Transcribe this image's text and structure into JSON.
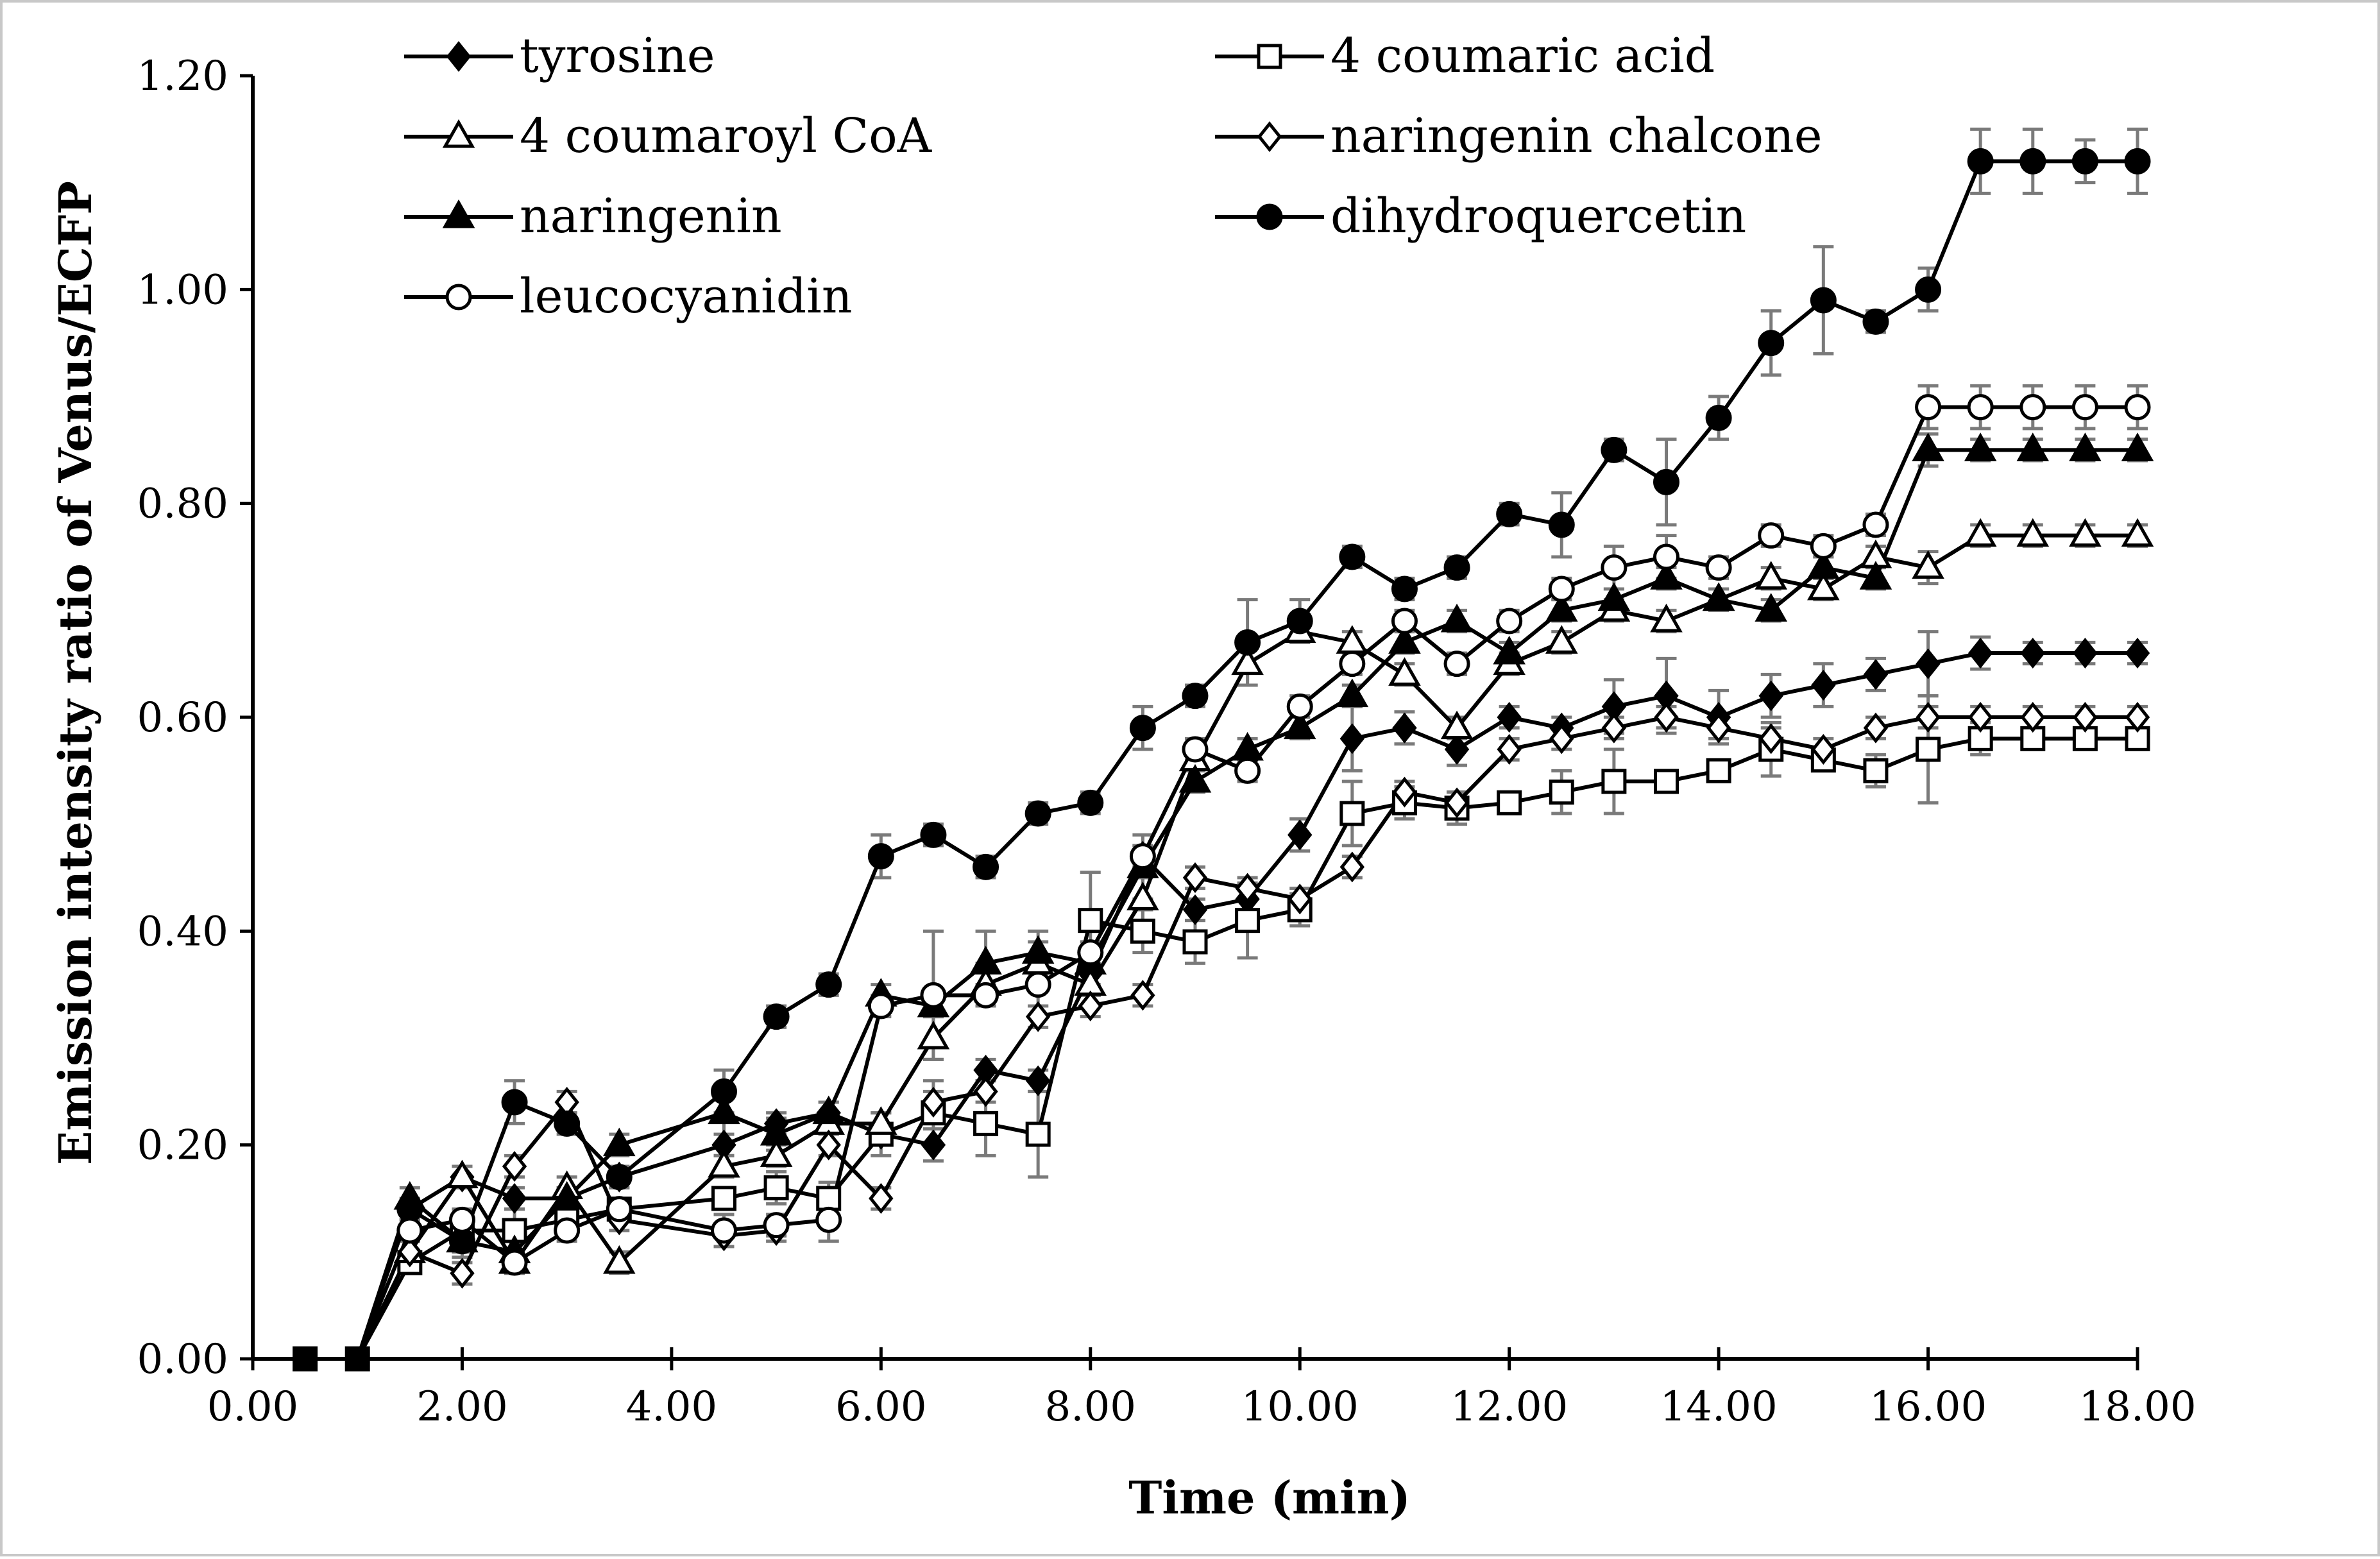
{
  "chart_data": {
    "type": "line",
    "title": "",
    "xlabel": "Time (min)",
    "ylabel": "Emission intensity ratio of Venus/ECFP",
    "xlim": [
      0,
      18
    ],
    "ylim": [
      0,
      1.2
    ],
    "xticks": [
      "0.00",
      "2.00",
      "4.00",
      "6.00",
      "8.00",
      "10.00",
      "12.00",
      "14.00",
      "16.00",
      "18.00"
    ],
    "yticks": [
      "0.00",
      "0.20",
      "0.40",
      "0.60",
      "0.80",
      "1.00",
      "1.20"
    ],
    "grid": false,
    "legend_position": "top",
    "series": [
      {
        "name": "tyrosine",
        "marker": "diamond",
        "fill": "filled",
        "points": [
          [
            0.5,
            0
          ],
          [
            1,
            0
          ],
          [
            1.5,
            0.14
          ],
          [
            2,
            0.17
          ],
          [
            2.5,
            0.15
          ],
          [
            3,
            0.15
          ],
          [
            3.5,
            0.17
          ],
          [
            4.5,
            0.2
          ],
          [
            5,
            0.22
          ],
          [
            5.5,
            0.23
          ],
          [
            6,
            0.21
          ],
          [
            6.5,
            0.2
          ],
          [
            7,
            0.27
          ],
          [
            7.5,
            0.26
          ],
          [
            8,
            0.36
          ],
          [
            8.5,
            0.47
          ],
          [
            9,
            0.42
          ],
          [
            9.5,
            0.43
          ],
          [
            10,
            0.49
          ],
          [
            10.5,
            0.58
          ],
          [
            11,
            0.59
          ],
          [
            11.5,
            0.57
          ],
          [
            12,
            0.6
          ],
          [
            12.5,
            0.59
          ],
          [
            13,
            0.61
          ],
          [
            13.5,
            0.62
          ],
          [
            14,
            0.6
          ],
          [
            14.5,
            0.62
          ],
          [
            15,
            0.63
          ],
          [
            15.5,
            0.64
          ],
          [
            16,
            0.65
          ],
          [
            16.5,
            0.66
          ],
          [
            17,
            0.66
          ],
          [
            17.5,
            0.66
          ],
          [
            18,
            0.66
          ]
        ],
        "errors": [
          0,
          0,
          0.01,
          0.01,
          0.01,
          0.01,
          0.01,
          0.01,
          0.01,
          0.01,
          0.01,
          0.015,
          0.01,
          0.01,
          0.01,
          0.01,
          0.01,
          0.01,
          0.015,
          0.03,
          0.015,
          0.015,
          0.01,
          0.01,
          0.025,
          0.035,
          0.025,
          0.02,
          0.02,
          0.015,
          0.03,
          0.015,
          0.01,
          0.01,
          0.01
        ]
      },
      {
        "name": "4 coumaric acid",
        "marker": "square",
        "fill": "open",
        "points": [
          [
            0.5,
            0
          ],
          [
            1,
            0
          ],
          [
            1.5,
            0.09
          ],
          [
            2,
            0.12
          ],
          [
            2.5,
            0.12
          ],
          [
            3,
            0.13
          ],
          [
            3.5,
            0.14
          ],
          [
            4.5,
            0.15
          ],
          [
            5,
            0.16
          ],
          [
            5.5,
            0.15
          ],
          [
            6,
            0.21
          ],
          [
            6.5,
            0.23
          ],
          [
            7,
            0.22
          ],
          [
            7.5,
            0.21
          ],
          [
            8,
            0.41
          ],
          [
            8.5,
            0.4
          ],
          [
            9,
            0.39
          ],
          [
            9.5,
            0.41
          ],
          [
            10,
            0.42
          ],
          [
            10.5,
            0.51
          ],
          [
            11,
            0.52
          ],
          [
            11.5,
            0.515
          ],
          [
            12,
            0.52
          ],
          [
            12.5,
            0.53
          ],
          [
            13,
            0.54
          ],
          [
            13.5,
            0.54
          ],
          [
            14,
            0.55
          ],
          [
            14.5,
            0.57
          ],
          [
            15,
            0.56
          ],
          [
            15.5,
            0.55
          ],
          [
            16,
            0.57
          ],
          [
            16.5,
            0.58
          ],
          [
            17,
            0.58
          ],
          [
            17.5,
            0.58
          ],
          [
            18,
            0.58
          ]
        ],
        "errors": [
          0,
          0,
          0.01,
          0.01,
          0.02,
          0.01,
          0.01,
          0.01,
          0.015,
          0.015,
          0.02,
          0.03,
          0.03,
          0.04,
          0.045,
          0.02,
          0.02,
          0.035,
          0.015,
          0.03,
          0.015,
          0.015,
          0.01,
          0.02,
          0.03,
          0.01,
          0.01,
          0.025,
          0.01,
          0.015,
          0.05,
          0.015,
          0.01,
          0.01,
          0.01
        ]
      },
      {
        "name": "4 coumaroyl CoA",
        "marker": "triangle",
        "fill": "open",
        "points": [
          [
            0.5,
            0
          ],
          [
            1,
            0
          ],
          [
            1.5,
            0.1
          ],
          [
            2,
            0.17
          ],
          [
            2.5,
            0.09
          ],
          [
            3,
            0.16
          ],
          [
            3.5,
            0.09
          ],
          [
            4.5,
            0.18
          ],
          [
            5,
            0.19
          ],
          [
            5.5,
            0.22
          ],
          [
            6,
            0.22
          ],
          [
            6.5,
            0.3
          ],
          [
            7,
            0.35
          ],
          [
            7.5,
            0.37
          ],
          [
            8,
            0.35
          ],
          [
            8.5,
            0.43
          ],
          [
            9,
            0.56
          ],
          [
            9.5,
            0.65
          ],
          [
            10,
            0.68
          ],
          [
            10.5,
            0.67
          ],
          [
            11,
            0.64
          ],
          [
            11.5,
            0.59
          ],
          [
            12,
            0.65
          ],
          [
            12.5,
            0.67
          ],
          [
            13,
            0.7
          ],
          [
            13.5,
            0.69
          ],
          [
            14,
            0.71
          ],
          [
            14.5,
            0.73
          ],
          [
            15,
            0.72
          ],
          [
            15.5,
            0.75
          ],
          [
            16,
            0.74
          ],
          [
            16.5,
            0.77
          ],
          [
            17,
            0.77
          ],
          [
            17.5,
            0.77
          ],
          [
            18,
            0.77
          ]
        ],
        "errors": [
          0,
          0,
          0.01,
          0.01,
          0.01,
          0.01,
          0.01,
          0.01,
          0.01,
          0.01,
          0.01,
          0.02,
          0.02,
          0.02,
          0.01,
          0.02,
          0.01,
          0.02,
          0.01,
          0.01,
          0.01,
          0.01,
          0.01,
          0.01,
          0.01,
          0.01,
          0.01,
          0.01,
          0.01,
          0.01,
          0.015,
          0.01,
          0.01,
          0.01,
          0.01
        ]
      },
      {
        "name": "naringenin chalcone",
        "marker": "diamond",
        "fill": "open",
        "points": [
          [
            0.5,
            0
          ],
          [
            1,
            0
          ],
          [
            1.5,
            0.1
          ],
          [
            2,
            0.08
          ],
          [
            2.5,
            0.18
          ],
          [
            3,
            0.24
          ],
          [
            3.5,
            0.13
          ],
          [
            4.5,
            0.115
          ],
          [
            5,
            0.12
          ],
          [
            5.5,
            0.2
          ],
          [
            6,
            0.15
          ],
          [
            6.5,
            0.24
          ],
          [
            7,
            0.25
          ],
          [
            7.5,
            0.32
          ],
          [
            8,
            0.33
          ],
          [
            8.5,
            0.34
          ],
          [
            9,
            0.45
          ],
          [
            9.5,
            0.44
          ],
          [
            10,
            0.43
          ],
          [
            10.5,
            0.46
          ],
          [
            11,
            0.53
          ],
          [
            11.5,
            0.52
          ],
          [
            12,
            0.57
          ],
          [
            12.5,
            0.58
          ],
          [
            13,
            0.59
          ],
          [
            13.5,
            0.6
          ],
          [
            14,
            0.59
          ],
          [
            14.5,
            0.58
          ],
          [
            15,
            0.57
          ],
          [
            15.5,
            0.59
          ],
          [
            16,
            0.6
          ],
          [
            16.5,
            0.6
          ],
          [
            17,
            0.6
          ],
          [
            17.5,
            0.6
          ],
          [
            18,
            0.6
          ]
        ],
        "errors": [
          0,
          0,
          0.01,
          0.01,
          0.01,
          0.01,
          0.01,
          0.01,
          0.01,
          0.01,
          0.01,
          0.01,
          0.01,
          0.01,
          0.01,
          0.01,
          0.01,
          0.01,
          0.01,
          0.01,
          0.01,
          0.01,
          0.01,
          0.01,
          0.01,
          0.01,
          0.01,
          0.01,
          0.01,
          0.01,
          0.01,
          0.01,
          0.01,
          0.01,
          0.01
        ]
      },
      {
        "name": "naringenin",
        "marker": "triangle",
        "fill": "filled",
        "points": [
          [
            0.5,
            0
          ],
          [
            1,
            0
          ],
          [
            1.5,
            0.15
          ],
          [
            2,
            0.11
          ],
          [
            2.5,
            0.1
          ],
          [
            3,
            0.15
          ],
          [
            3.5,
            0.2
          ],
          [
            4.5,
            0.23
          ],
          [
            5,
            0.21
          ],
          [
            5.5,
            0.23
          ],
          [
            6,
            0.34
          ],
          [
            6.5,
            0.33
          ],
          [
            7,
            0.37
          ],
          [
            7.5,
            0.38
          ],
          [
            8,
            0.37
          ],
          [
            8.5,
            0.46
          ],
          [
            9,
            0.54
          ],
          [
            9.5,
            0.57
          ],
          [
            10,
            0.59
          ],
          [
            10.5,
            0.62
          ],
          [
            11,
            0.67
          ],
          [
            11.5,
            0.69
          ],
          [
            12,
            0.66
          ],
          [
            12.5,
            0.7
          ],
          [
            13,
            0.71
          ],
          [
            13.5,
            0.73
          ],
          [
            14,
            0.71
          ],
          [
            14.5,
            0.7
          ],
          [
            15,
            0.74
          ],
          [
            15.5,
            0.73
          ],
          [
            16,
            0.85
          ],
          [
            16.5,
            0.85
          ],
          [
            17,
            0.85
          ],
          [
            17.5,
            0.85
          ],
          [
            18,
            0.85
          ]
        ],
        "errors": [
          0,
          0,
          0.01,
          0.01,
          0.01,
          0.01,
          0.01,
          0.04,
          0.015,
          0.01,
          0.01,
          0.01,
          0.03,
          0.02,
          0.01,
          0.03,
          0.01,
          0.01,
          0.01,
          0.01,
          0.01,
          0.01,
          0.01,
          0.01,
          0.01,
          0.01,
          0.01,
          0.01,
          0.01,
          0.01,
          0.015,
          0.01,
          0.01,
          0.01,
          0.01
        ]
      },
      {
        "name": "dihydroquercetin",
        "marker": "circle",
        "fill": "filled",
        "points": [
          [
            0.5,
            0
          ],
          [
            1,
            0
          ],
          [
            1.5,
            0.14
          ],
          [
            2,
            0.11
          ],
          [
            2.5,
            0.24
          ],
          [
            3,
            0.22
          ],
          [
            3.5,
            0.17
          ],
          [
            4.5,
            0.25
          ],
          [
            5,
            0.32
          ],
          [
            5.5,
            0.35
          ],
          [
            6,
            0.47
          ],
          [
            6.5,
            0.49
          ],
          [
            7,
            0.46
          ],
          [
            7.5,
            0.51
          ],
          [
            8,
            0.52
          ],
          [
            8.5,
            0.59
          ],
          [
            9,
            0.62
          ],
          [
            9.5,
            0.67
          ],
          [
            10,
            0.69
          ],
          [
            10.5,
            0.75
          ],
          [
            11,
            0.72
          ],
          [
            11.5,
            0.74
          ],
          [
            12,
            0.79
          ],
          [
            12.5,
            0.78
          ],
          [
            13,
            0.85
          ],
          [
            13.5,
            0.82
          ],
          [
            14,
            0.88
          ],
          [
            14.5,
            0.95
          ],
          [
            15,
            0.99
          ],
          [
            15.5,
            0.97
          ],
          [
            16,
            1.0
          ],
          [
            16.5,
            1.12
          ],
          [
            17,
            1.12
          ],
          [
            17.5,
            1.12
          ],
          [
            18,
            1.12
          ]
        ],
        "errors": [
          0,
          0,
          0.01,
          0.015,
          0.02,
          0.01,
          0.01,
          0.02,
          0.01,
          0.01,
          0.02,
          0.01,
          0.01,
          0.01,
          0.01,
          0.02,
          0.01,
          0.04,
          0.02,
          0.01,
          0.01,
          0.01,
          0.01,
          0.03,
          0.01,
          0.04,
          0.02,
          0.03,
          0.05,
          0.01,
          0.02,
          0.03,
          0.03,
          0.02,
          0.03
        ]
      },
      {
        "name": "leucocyanidin",
        "marker": "circle",
        "fill": "open",
        "points": [
          [
            0.5,
            0
          ],
          [
            1,
            0
          ],
          [
            1.5,
            0.12
          ],
          [
            2,
            0.13
          ],
          [
            2.5,
            0.09
          ],
          [
            3,
            0.12
          ],
          [
            3.5,
            0.14
          ],
          [
            4.5,
            0.12
          ],
          [
            5,
            0.125
          ],
          [
            5.5,
            0.13
          ],
          [
            6,
            0.33
          ],
          [
            6.5,
            0.34
          ],
          [
            7,
            0.34
          ],
          [
            7.5,
            0.35
          ],
          [
            8,
            0.38
          ],
          [
            8.5,
            0.47
          ],
          [
            9,
            0.57
          ],
          [
            9.5,
            0.55
          ],
          [
            10,
            0.61
          ],
          [
            10.5,
            0.65
          ],
          [
            11,
            0.69
          ],
          [
            11.5,
            0.65
          ],
          [
            12,
            0.69
          ],
          [
            12.5,
            0.72
          ],
          [
            13,
            0.74
          ],
          [
            13.5,
            0.75
          ],
          [
            14,
            0.74
          ],
          [
            14.5,
            0.77
          ],
          [
            15,
            0.76
          ],
          [
            15.5,
            0.78
          ],
          [
            16,
            0.89
          ],
          [
            16.5,
            0.89
          ],
          [
            17,
            0.89
          ],
          [
            17.5,
            0.89
          ],
          [
            18,
            0.89
          ]
        ],
        "errors": [
          0,
          0,
          0.01,
          0.01,
          0.01,
          0.01,
          0.01,
          0.015,
          0.01,
          0.02,
          0.01,
          0.06,
          0.01,
          0.02,
          0.01,
          0.01,
          0.01,
          0.01,
          0.01,
          0.01,
          0.01,
          0.01,
          0.01,
          0.01,
          0.02,
          0.02,
          0.01,
          0.01,
          0.01,
          0.01,
          0.02,
          0.02,
          0.02,
          0.02,
          0.02
        ]
      }
    ]
  }
}
